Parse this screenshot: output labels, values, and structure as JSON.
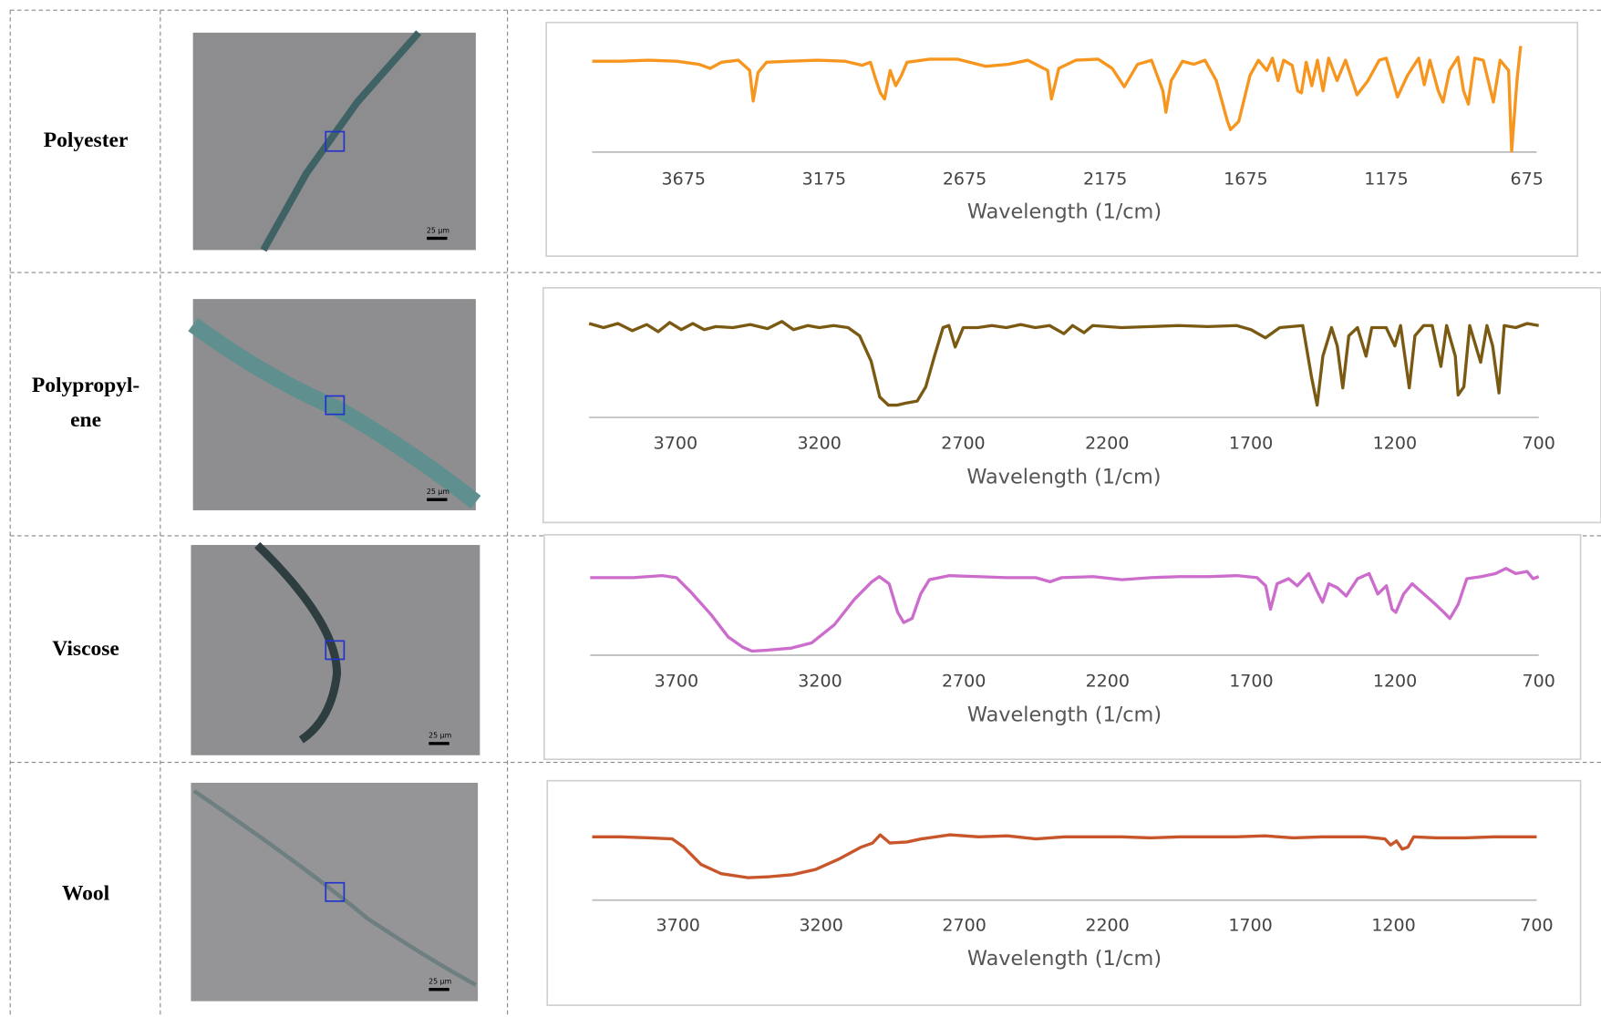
{
  "table": {
    "rows": [
      {
        "label": [
          "Polyester"
        ],
        "scale_bar": "25 µm"
      },
      {
        "label": [
          "Polypropyl-",
          "ene"
        ],
        "scale_bar": "25 µm"
      },
      {
        "label": [
          "Viscose"
        ],
        "scale_bar": "25 µm"
      },
      {
        "label": [
          "Wool"
        ],
        "scale_bar": "25 µm"
      }
    ]
  },
  "chart_data": [
    {
      "type": "line",
      "x_label": "Wavelength (1/cm)",
      "xlim": [
        4000,
        640
      ],
      "ylim": [
        0,
        100
      ],
      "xticks": [
        3675,
        3175,
        2675,
        2175,
        1675,
        1175,
        675
      ],
      "series": [
        {
          "name": "Polyester",
          "color": "#f7961e",
          "x": [
            4000,
            3900,
            3800,
            3700,
            3620,
            3580,
            3540,
            3480,
            3440,
            3427,
            3410,
            3380,
            3300,
            3200,
            3100,
            3040,
            3010,
            2990,
            2975,
            2960,
            2940,
            2920,
            2900,
            2880,
            2800,
            2700,
            2600,
            2520,
            2450,
            2380,
            2366,
            2340,
            2280,
            2200,
            2150,
            2107,
            2060,
            2010,
            1970,
            1959,
            1940,
            1900,
            1860,
            1820,
            1780,
            1740,
            1729,
            1700,
            1660,
            1630,
            1600,
            1580,
            1560,
            1540,
            1510,
            1490,
            1477,
            1460,
            1440,
            1420,
            1400,
            1380,
            1350,
            1320,
            1279,
            1240,
            1200,
            1175,
            1135,
            1100,
            1060,
            1040,
            1020,
            990,
            973,
            950,
            920,
            900,
            883,
            860,
            830,
            794,
            770,
            740,
            729,
            710,
            697
          ],
          "values": [
            89,
            89,
            90,
            89,
            86,
            82,
            88,
            90,
            80,
            50,
            78,
            88,
            89,
            90,
            89,
            85,
            88,
            70,
            58,
            52,
            80,
            65,
            75,
            88,
            91,
            91,
            84,
            86,
            90,
            80,
            52,
            82,
            90,
            91,
            82,
            64,
            86,
            90,
            60,
            39,
            70,
            89,
            86,
            90,
            70,
            30,
            22,
            30,
            75,
            90,
            80,
            92,
            70,
            90,
            85,
            60,
            58,
            88,
            65,
            90,
            60,
            92,
            70,
            90,
            56,
            70,
            90,
            92,
            54,
            75,
            92,
            66,
            90,
            60,
            49,
            80,
            93,
            60,
            47,
            92,
            90,
            49,
            90,
            80,
            1,
            70,
            104
          ]
        }
      ]
    },
    {
      "type": "line",
      "x_label": "Wavelength (1/cm)",
      "xlim": [
        4000,
        700
      ],
      "ylim": [
        0,
        100
      ],
      "xticks": [
        3700,
        3200,
        2700,
        2200,
        1700,
        1200,
        700
      ],
      "series": [
        {
          "name": "Polypropylene",
          "color": "#7a5a12",
          "x": [
            4000,
            3950,
            3900,
            3850,
            3800,
            3760,
            3720,
            3680,
            3640,
            3600,
            3560,
            3500,
            3440,
            3380,
            3330,
            3290,
            3240,
            3200,
            3150,
            3100,
            3060,
            3020,
            2990,
            2960,
            2930,
            2900,
            2860,
            2830,
            2800,
            2770,
            2750,
            2728,
            2700,
            2650,
            2600,
            2550,
            2500,
            2450,
            2400,
            2350,
            2320,
            2280,
            2250,
            2150,
            2050,
            1950,
            1850,
            1750,
            1700,
            1650,
            1600,
            1520,
            1490,
            1470,
            1450,
            1420,
            1400,
            1381,
            1360,
            1330,
            1300,
            1280,
            1230,
            1200,
            1180,
            1150,
            1130,
            1100,
            1070,
            1040,
            1020,
            990,
            980,
            960,
            940,
            902,
            880,
            860,
            838,
            820,
            780,
            740,
            700
          ],
          "values": [
            92,
            88,
            92,
            85,
            91,
            84,
            93,
            86,
            92,
            86,
            89,
            88,
            91,
            87,
            94,
            86,
            90,
            88,
            90,
            88,
            80,
            55,
            20,
            12,
            12,
            14,
            16,
            30,
            60,
            88,
            90,
            69,
            88,
            88,
            90,
            88,
            91,
            88,
            90,
            82,
            90,
            83,
            90,
            88,
            89,
            90,
            89,
            90,
            86,
            78,
            88,
            90,
            40,
            12,
            60,
            88,
            70,
            29,
            80,
            88,
            60,
            88,
            88,
            70,
            90,
            29,
            80,
            90,
            90,
            50,
            90,
            60,
            22,
            30,
            90,
            54,
            90,
            70,
            24,
            90,
            88,
            92,
            90
          ]
        }
      ]
    },
    {
      "type": "line",
      "x_label": "Wavelength (1/cm)",
      "xlim": [
        4000,
        700
      ],
      "ylim": [
        0,
        100
      ],
      "xticks": [
        3700,
        3200,
        2700,
        2200,
        1700,
        1200,
        700
      ],
      "series": [
        {
          "name": "Viscose",
          "color": "#cc6ccc",
          "x": [
            4000,
            3850,
            3750,
            3700,
            3650,
            3580,
            3520,
            3470,
            3437,
            3380,
            3300,
            3230,
            3150,
            3080,
            3020,
            2994,
            2960,
            2930,
            2909,
            2880,
            2850,
            2820,
            2750,
            2650,
            2550,
            2450,
            2400,
            2360,
            2250,
            2150,
            2050,
            1950,
            1850,
            1750,
            1680,
            1650,
            1633,
            1610,
            1570,
            1540,
            1500,
            1470,
            1452,
            1430,
            1400,
            1370,
            1330,
            1290,
            1260,
            1230,
            1210,
            1197,
            1170,
            1140,
            1100,
            1060,
            1030,
            1009,
            980,
            950,
            900,
            850,
            814,
            780,
            740,
            720,
            700
          ],
          "values": [
            76,
            76,
            78,
            76,
            62,
            40,
            18,
            8,
            4,
            5,
            7,
            12,
            30,
            55,
            72,
            77,
            70,
            42,
            32,
            36,
            60,
            74,
            78,
            77,
            76,
            76,
            72,
            76,
            77,
            74,
            76,
            77,
            77,
            78,
            76,
            68,
            45,
            70,
            75,
            68,
            80,
            62,
            52,
            70,
            66,
            58,
            75,
            80,
            60,
            68,
            45,
            42,
            60,
            70,
            60,
            50,
            42,
            36,
            50,
            75,
            77,
            80,
            85,
            80,
            82,
            75,
            77
          ]
        }
      ]
    },
    {
      "type": "line",
      "x_label": "Wavelength (1/cm)",
      "xlim": [
        4000,
        700
      ],
      "ylim": [
        0,
        100
      ],
      "xticks": [
        3700,
        3200,
        2700,
        2200,
        1700,
        1200,
        700
      ],
      "series": [
        {
          "name": "Wool",
          "color": "#c8562a",
          "x": [
            4000,
            3900,
            3800,
            3720,
            3680,
            3620,
            3550,
            3455,
            3380,
            3300,
            3220,
            3140,
            3060,
            3020,
            2994,
            2960,
            2900,
            2850,
            2750,
            2650,
            2550,
            2450,
            2350,
            2250,
            2150,
            2050,
            1950,
            1850,
            1750,
            1650,
            1550,
            1450,
            1300,
            1230,
            1210,
            1190,
            1170,
            1150,
            1130,
            1050,
            950,
            850,
            700
          ],
          "values": [
            62,
            62,
            61,
            60,
            52,
            35,
            26,
            22,
            23,
            25,
            30,
            40,
            52,
            56,
            64,
            56,
            57,
            60,
            64,
            62,
            63,
            60,
            62,
            62,
            62,
            61,
            62,
            62,
            62,
            63,
            61,
            62,
            62,
            60,
            54,
            58,
            50,
            52,
            62,
            61,
            61,
            62,
            62
          ]
        }
      ]
    }
  ]
}
